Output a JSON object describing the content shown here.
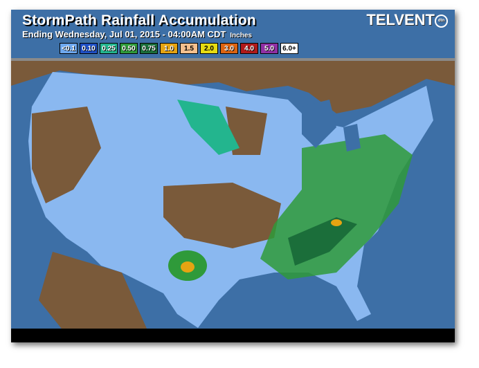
{
  "header": {
    "title": "StormPath Rainfall Accumulation",
    "subtitle": "Ending Wednesday, Jul 01, 2015 - 04:00AM CDT",
    "units": "Inches",
    "logo": "TELVENT",
    "logo_badge": "dtn"
  },
  "legend": [
    {
      "label": "<0.1",
      "color": "#6ea8ee"
    },
    {
      "label": "0.10",
      "color": "#1f4fc4"
    },
    {
      "label": "0.25",
      "color": "#23b58e"
    },
    {
      "label": "0.50",
      "color": "#2f9a3a"
    },
    {
      "label": "0.75",
      "color": "#1b6e3a"
    },
    {
      "label": "1.0",
      "color": "#e6a412"
    },
    {
      "label": "1.5",
      "color": "#f6c08e"
    },
    {
      "label": "2.0",
      "color": "#e6dc12"
    },
    {
      "label": "3.0",
      "color": "#dc6412"
    },
    {
      "label": "4.0",
      "color": "#b01a1a"
    },
    {
      "label": "5.0",
      "color": "#9030a4"
    },
    {
      "label": "6.0+",
      "color": "#ffffff"
    }
  ],
  "colors": {
    "water": "#3d6fa6",
    "no_rain_land": "#7a5a3a",
    "light_rain": "#8ab8f0"
  }
}
